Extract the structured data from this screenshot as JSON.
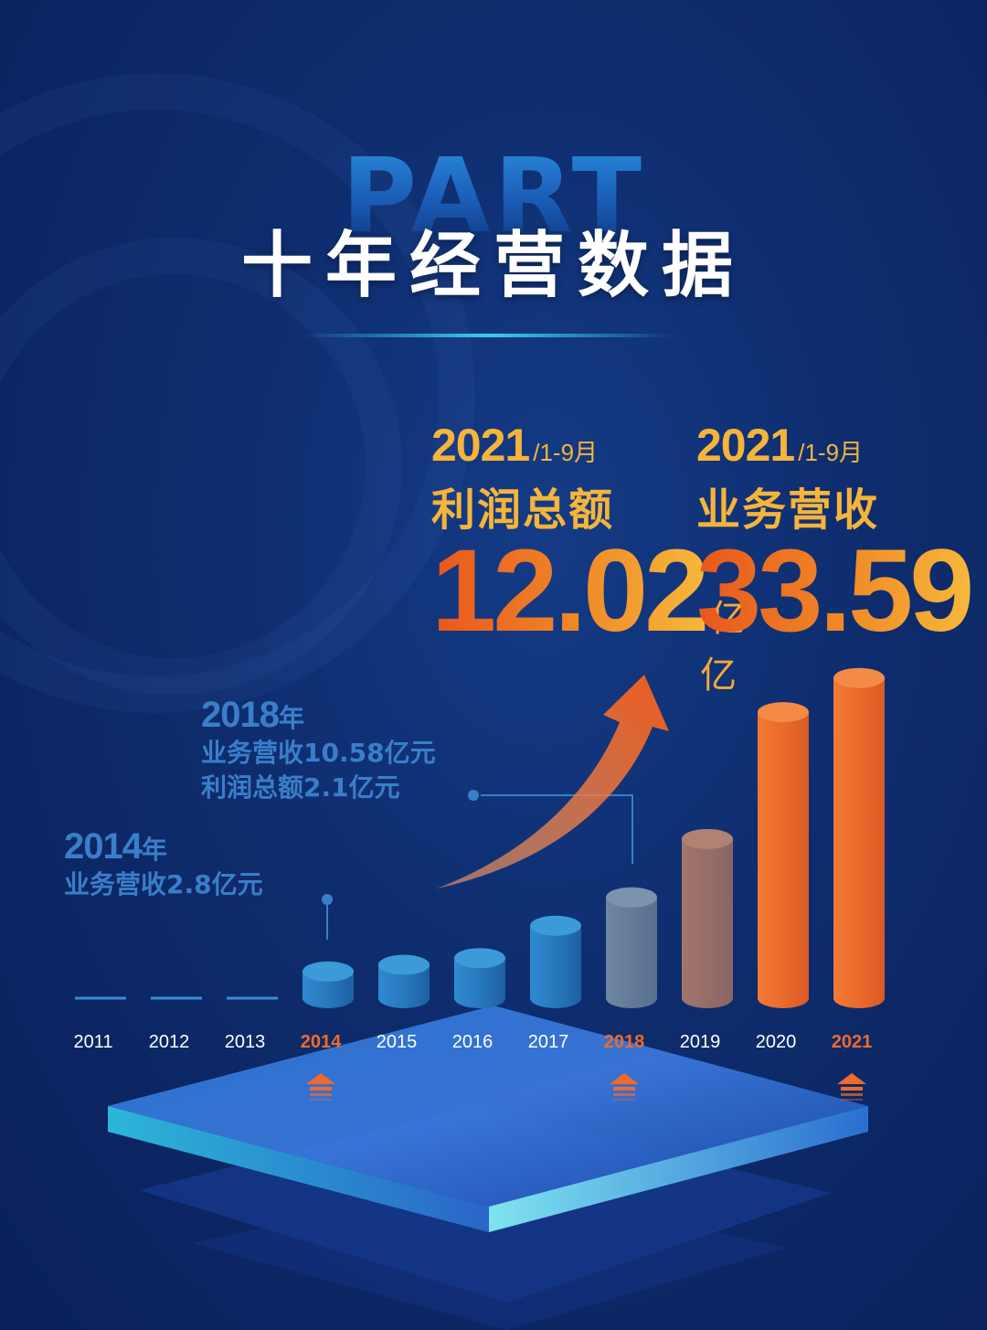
{
  "header": {
    "part_text": "PART",
    "title": "十年经营数据"
  },
  "kpis": [
    {
      "year": "2021",
      "period": "/1-9月",
      "label": "利润总额",
      "value": "12.02",
      "unit": "亿"
    },
    {
      "year": "2021",
      "period": "/1-9月",
      "label": "业务营收",
      "value": "33.59",
      "unit": "亿"
    }
  ],
  "annotations": {
    "y2018": {
      "year": "2018",
      "year_suffix": "年",
      "line1": "业务营收10.58亿元",
      "line2": "利润总额2.1亿元"
    },
    "y2014": {
      "year": "2014",
      "year_suffix": "年",
      "line1": "业务营收2.8亿元"
    }
  },
  "colors": {
    "blue_bar": "#2a7fc4",
    "orange_bar": "#ee6a28",
    "accent_orange": "#f06a2a",
    "annotation_blue": "#3a7ec9"
  },
  "chart_data": {
    "type": "bar",
    "categories": [
      "2011",
      "2012",
      "2013",
      "2014",
      "2015",
      "2016",
      "2017",
      "2018",
      "2019",
      "2020",
      "2021"
    ],
    "values": [
      null,
      null,
      null,
      2.8,
      3.5,
      4.2,
      7.6,
      10.58,
      16.7,
      30.0,
      33.59
    ],
    "highlighted": [
      "2014",
      "2018",
      "2021"
    ],
    "unit": "亿元",
    "ylim": [
      0,
      35
    ]
  }
}
